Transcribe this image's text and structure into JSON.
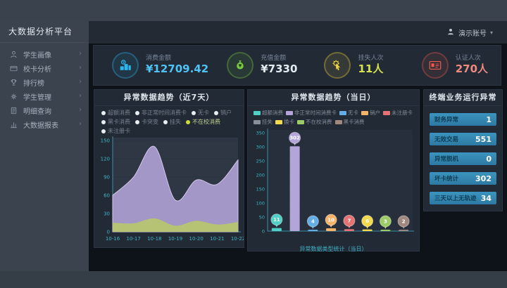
{
  "app": {
    "title": "大数据分析平台",
    "user_name": "演示账号"
  },
  "sidebar": {
    "items": [
      {
        "key": "student-profile",
        "label": "学生画像",
        "icon": "person-icon"
      },
      {
        "key": "card-analysis",
        "label": "校卡分析",
        "icon": "card-icon"
      },
      {
        "key": "rankings",
        "label": "排行榜",
        "icon": "trophy-icon"
      },
      {
        "key": "student-management",
        "label": "学生管理",
        "icon": "gear-icon"
      },
      {
        "key": "detail-query",
        "label": "明细查询",
        "icon": "document-icon"
      },
      {
        "key": "bigdata-report",
        "label": "大数据报表",
        "icon": "report-icon"
      }
    ]
  },
  "kpis": [
    {
      "key": "consumption-amount",
      "label": "消费金额",
      "value": "¥12709.42",
      "icon": "coins-icon",
      "accent": "#2eb6ef",
      "value_color": "#4fc3f7"
    },
    {
      "key": "recharge-amount",
      "label": "充值金额",
      "value": "¥7330",
      "icon": "moneybag-icon",
      "accent": "#7ac943",
      "value_color": "#e4edf2"
    },
    {
      "key": "loss-report-count",
      "label": "挂失人次",
      "value": "11人",
      "icon": "hand-click-icon",
      "accent": "#f0d33f",
      "value_color": "#d7e34d"
    },
    {
      "key": "auth-count",
      "label": "认证人次",
      "value": "270人",
      "icon": "id-card-icon",
      "accent": "#ef5a4e",
      "value_color": "#f08a7e"
    }
  ],
  "left_legend": [
    {
      "label": "超额消费",
      "dot": "#e8edf2"
    },
    {
      "label": "非正常时间消费卡",
      "dot": "#e8edf2"
    },
    {
      "label": "无卡",
      "dot": "#e8edf2"
    },
    {
      "label": "销户",
      "dot": "#e8edf2"
    },
    {
      "label": "黑卡消费",
      "dot": "#e8edf2"
    },
    {
      "label": "卡突变",
      "dot": "#e8edf2"
    },
    {
      "label": "挂失",
      "dot": "#e8edf2"
    },
    {
      "label": "不在校消费",
      "dot": "#cddc39",
      "active": true
    },
    {
      "label": "未注册卡",
      "dot": "#e8edf2"
    }
  ],
  "right_legend": [
    {
      "label": "超额消费",
      "color": "#4fd0c5"
    },
    {
      "label": "非正常时间消费卡",
      "color": "#b3a5d8"
    },
    {
      "label": "无卡",
      "color": "#63aee6"
    },
    {
      "label": "销户",
      "color": "#f5b36a"
    },
    {
      "label": "未注册卡",
      "color": "#e57373"
    },
    {
      "label": "挂失",
      "color": "#8a9097"
    },
    {
      "label": "换卡",
      "color": "#f2d94e"
    },
    {
      "label": "不在校消费",
      "color": "#9ccc65"
    },
    {
      "label": "黑卡消费",
      "color": "#a1887f"
    }
  ],
  "chart_data": [
    {
      "type": "area",
      "title": "异常数据趋势（近7天）",
      "categories": [
        "10-16",
        "10-17",
        "10-18",
        "10-19",
        "10-20",
        "10-21",
        "10-22"
      ],
      "series": [
        {
          "name": "非正常时间消费卡",
          "color": "#b3a5d8",
          "values": [
            60,
            90,
            140,
            52,
            85,
            78,
            118
          ]
        },
        {
          "name": "不在校消费",
          "color": "#b8c96a",
          "values": [
            15,
            14,
            22,
            10,
            18,
            12,
            16
          ]
        }
      ],
      "ylim": [
        0,
        150
      ],
      "yticks": [
        0,
        30,
        60,
        90,
        120,
        150
      ],
      "grid": true,
      "legend_position": "top"
    },
    {
      "type": "bar",
      "title": "异常数据趋势（当日）",
      "footer": "异常数据类型统计（当日）",
      "categories": [
        "超额消费",
        "非正常时间消费卡",
        "无卡",
        "销户",
        "未注册卡",
        "换卡",
        "不在校消费",
        "黑卡消费"
      ],
      "values": [
        11,
        302,
        4,
        10,
        7,
        6,
        3,
        2
      ],
      "colors": [
        "#4fd0c5",
        "#b3a5d8",
        "#63aee6",
        "#f5b36a",
        "#e57373",
        "#f2d94e",
        "#9ccc65",
        "#a1887f"
      ],
      "ylim": [
        0,
        350
      ],
      "yticks": [
        0,
        50,
        100,
        150,
        200,
        250,
        300,
        350
      ],
      "grid": true,
      "legend_position": "top"
    }
  ],
  "terminal_panel": {
    "title": "终端业务运行异常",
    "rows": [
      {
        "key": "finance-anomaly",
        "label": "财务异常",
        "value": "1"
      },
      {
        "key": "invalid-transactions",
        "label": "无效交易",
        "value": "551"
      },
      {
        "key": "abnormal-offline",
        "label": "异常脱机",
        "value": "0"
      },
      {
        "key": "bad-card-count",
        "label": "坏卡统计",
        "value": "302"
      },
      {
        "key": "no-trace-3days",
        "label": "三天以上无轨迹",
        "value": "34"
      }
    ]
  }
}
